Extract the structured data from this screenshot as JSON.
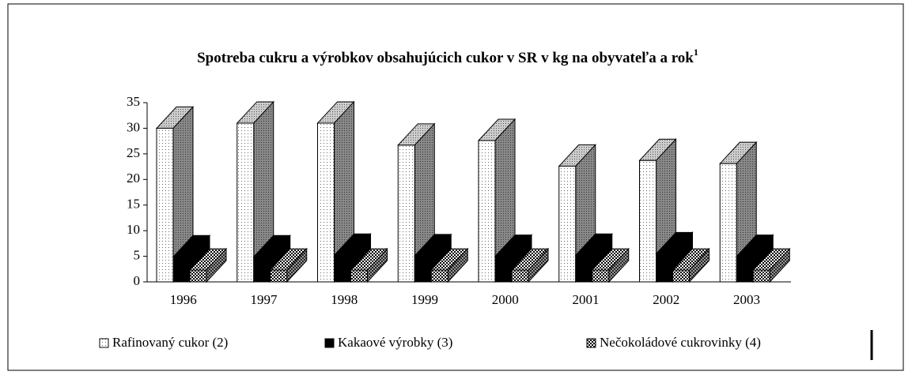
{
  "chart_data": {
    "type": "bar3d",
    "title": "Spotreba cukru a výrobkov obsahujúcich cukor v SR v kg na obyvateľa a rok",
    "title_superscript": "1",
    "categories": [
      "1996",
      "1997",
      "1998",
      "1999",
      "2000",
      "2001",
      "2002",
      "2003"
    ],
    "series": [
      {
        "name": "Rafinovaný cukor (2)",
        "color": "#ffffff",
        "values": [
          30,
          31,
          31,
          26.7,
          27.6,
          22.6,
          23.7,
          23.1
        ]
      },
      {
        "name": "Kakaové výrobky (3)",
        "color": "#000000",
        "values": [
          4.9,
          4.9,
          5.2,
          5.1,
          5.0,
          5.2,
          5.5,
          5.0
        ]
      },
      {
        "name": "Nečokoládové cukrovinky (4)",
        "color": "#888888",
        "values": [
          2.3,
          2.3,
          2.3,
          2.3,
          2.3,
          2.3,
          2.3,
          2.3
        ]
      }
    ],
    "ylim": [
      0,
      35
    ],
    "yticks": [
      0,
      5,
      10,
      15,
      20,
      25,
      30,
      35
    ],
    "legend": "bottom"
  }
}
